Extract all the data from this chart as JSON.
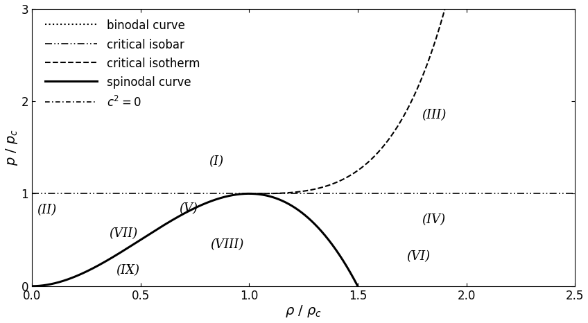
{
  "xlim": [
    0,
    2.5
  ],
  "ylim": [
    0,
    3.0
  ],
  "xlabel": "ρ / ρ_c",
  "ylabel": "p / p_c",
  "legend_entries": [
    "binodal curve",
    "critical isobar",
    "critical isotherm",
    "spinodal curve",
    "c² = 0"
  ],
  "zone_labels": [
    "(I)",
    "(II)",
    "(III)",
    "(IV)",
    "(V)",
    "(VI)",
    "(VII)",
    "(VIII)",
    "(IX)"
  ],
  "zone_positions": [
    [
      0.85,
      1.35
    ],
    [
      0.07,
      0.82
    ],
    [
      1.85,
      1.85
    ],
    [
      1.85,
      0.72
    ],
    [
      0.72,
      0.84
    ],
    [
      1.78,
      0.32
    ],
    [
      0.42,
      0.57
    ],
    [
      0.9,
      0.45
    ],
    [
      0.44,
      0.17
    ]
  ],
  "background_color": "#ffffff",
  "line_color": "#000000",
  "fontsize": 13
}
